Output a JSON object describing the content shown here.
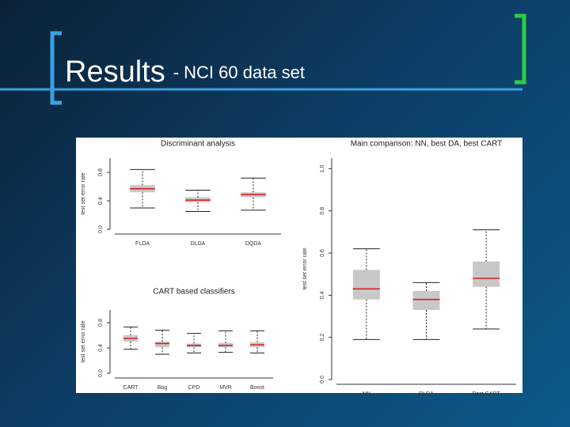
{
  "slide": {
    "title": "Results",
    "subtitle": "- NCI 60 data set"
  },
  "chart_data": [
    {
      "type": "boxplot",
      "title": "Discriminant analysis",
      "ylabel": "test set error rate",
      "categories": [
        "FLDA",
        "DLDA",
        "DQDA"
      ],
      "min": [
        0.3,
        0.25,
        0.27
      ],
      "q1": [
        0.52,
        0.38,
        0.45
      ],
      "median": [
        0.57,
        0.41,
        0.49
      ],
      "q3": [
        0.62,
        0.45,
        0.52
      ],
      "max": [
        0.84,
        0.55,
        0.72
      ],
      "ylim": [
        0,
        1.0
      ],
      "yticks": [
        {
          "value": 0,
          "label": "0.0"
        },
        0.4,
        0.8
      ],
      "color": "#c8c8c8",
      "median_color": "#d62020"
    },
    {
      "type": "boxplot",
      "title": "CART based classifiers",
      "ylabel": "test set error rate",
      "categories": [
        "CART",
        "Bag",
        "CPD",
        "MVR",
        "Boost"
      ],
      "min": [
        0.38,
        0.3,
        0.32,
        0.33,
        0.32
      ],
      "q1": [
        0.5,
        0.41,
        0.41,
        0.41,
        0.41
      ],
      "median": [
        0.55,
        0.47,
        0.44,
        0.44,
        0.45
      ],
      "q3": [
        0.6,
        0.5,
        0.47,
        0.48,
        0.49
      ],
      "max": [
        0.73,
        0.68,
        0.63,
        0.67,
        0.67
      ],
      "ylim": [
        0,
        1.0
      ],
      "yticks": [
        {
          "value": 0,
          "label": "0.0"
        },
        0.4,
        0.8
      ],
      "color": "#c8c8c8",
      "median_color": "#d62020"
    },
    {
      "type": "boxplot",
      "title": "Main comparison: NN, best DA, best CART",
      "ylabel": "test set error rate",
      "categories": [
        "NN",
        "DLDA",
        "Best CART"
      ],
      "min": [
        0.19,
        0.19,
        0.24
      ],
      "q1": [
        0.38,
        0.33,
        0.44
      ],
      "median": [
        0.43,
        0.38,
        0.48
      ],
      "q3": [
        0.52,
        0.42,
        0.56
      ],
      "max": [
        0.62,
        0.46,
        0.71
      ],
      "ylim": [
        0,
        1.05
      ],
      "yticks": [
        {
          "value": 0,
          "label": "0.0"
        },
        0.2,
        0.4,
        0.6,
        0.8,
        {
          "value": 1,
          "label": "1.0"
        }
      ],
      "color": "#c8c8c8",
      "median_color": "#d62020"
    }
  ]
}
